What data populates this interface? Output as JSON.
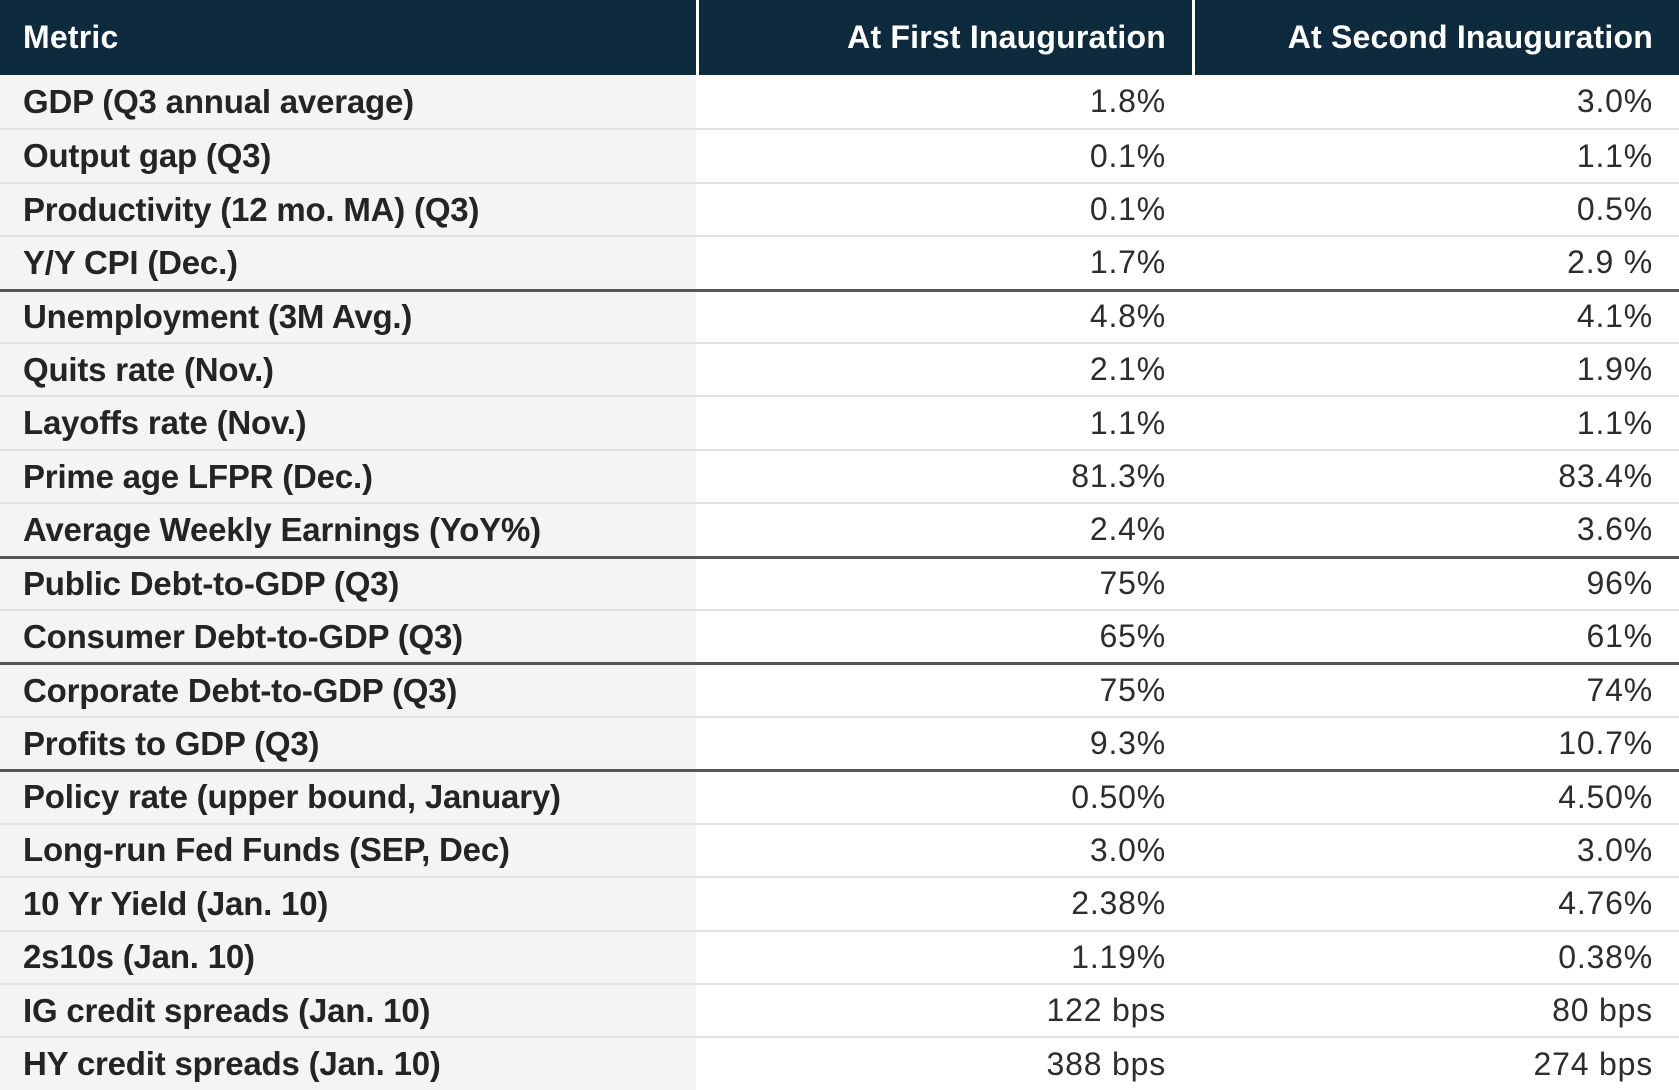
{
  "chart_data": {
    "type": "table",
    "columns": [
      "Metric",
      "At First Inauguration",
      "At Second Inauguration"
    ],
    "rows": [
      {
        "metric": "GDP (Q3 annual average)",
        "first": "1.8%",
        "second": "3.0%",
        "thick_top": false
      },
      {
        "metric": "Output gap (Q3)",
        "first": "0.1%",
        "second": "1.1%",
        "thick_top": false
      },
      {
        "metric": "Productivity (12 mo. MA) (Q3)",
        "first": "0.1%",
        "second": "0.5%",
        "thick_top": false
      },
      {
        "metric": "Y/Y CPI (Dec.)",
        "first": "1.7%",
        "second": "2.9 %",
        "thick_top": false
      },
      {
        "metric": "Unemployment (3M Avg.)",
        "first": "4.8%",
        "second": "4.1%",
        "thick_top": true
      },
      {
        "metric": "Quits rate (Nov.)",
        "first": "2.1%",
        "second": "1.9%",
        "thick_top": false
      },
      {
        "metric": "Layoffs rate (Nov.)",
        "first": "1.1%",
        "second": "1.1%",
        "thick_top": false
      },
      {
        "metric": "Prime age LFPR (Dec.)",
        "first": "81.3%",
        "second": "83.4%",
        "thick_top": false
      },
      {
        "metric": "Average Weekly Earnings (YoY%)",
        "first": "2.4%",
        "second": "3.6%",
        "thick_top": false
      },
      {
        "metric": "Public Debt-to-GDP (Q3)",
        "first": "75%",
        "second": "96%",
        "thick_top": true
      },
      {
        "metric": "Consumer Debt-to-GDP (Q3)",
        "first": "65%",
        "second": "61%",
        "thick_top": false
      },
      {
        "metric": "Corporate Debt-to-GDP (Q3)",
        "first": "75%",
        "second": "74%",
        "thick_top": true
      },
      {
        "metric": "Profits to GDP (Q3)",
        "first": "9.3%",
        "second": "10.7%",
        "thick_top": false
      },
      {
        "metric": "Policy rate (upper bound, January)",
        "first": "0.50%",
        "second": "4.50%",
        "thick_top": true
      },
      {
        "metric": "Long-run Fed Funds (SEP, Dec)",
        "first": "3.0%",
        "second": "3.0%",
        "thick_top": false
      },
      {
        "metric": "10 Yr Yield (Jan. 10)",
        "first": "2.38%",
        "second": "4.76%",
        "thick_top": false
      },
      {
        "metric": "2s10s (Jan. 10)",
        "first": "1.19%",
        "second": "0.38%",
        "thick_top": false
      },
      {
        "metric": "IG credit spreads (Jan. 10)",
        "first": "122 bps",
        "second": "80 bps",
        "thick_top": false
      },
      {
        "metric": "HY credit spreads (Jan. 10)",
        "first": "388 bps",
        "second": "274 bps",
        "thick_top": false
      }
    ]
  },
  "colors": {
    "header_bg": "#0d2b3c",
    "header_text": "#ffffff",
    "label_bg": "#f4f4f4",
    "value_bg": "#ffffff",
    "label_text": "#242424",
    "value_text": "#2d2d2d",
    "thin_divider": "#e2e2e2",
    "thick_divider": "#555555"
  }
}
